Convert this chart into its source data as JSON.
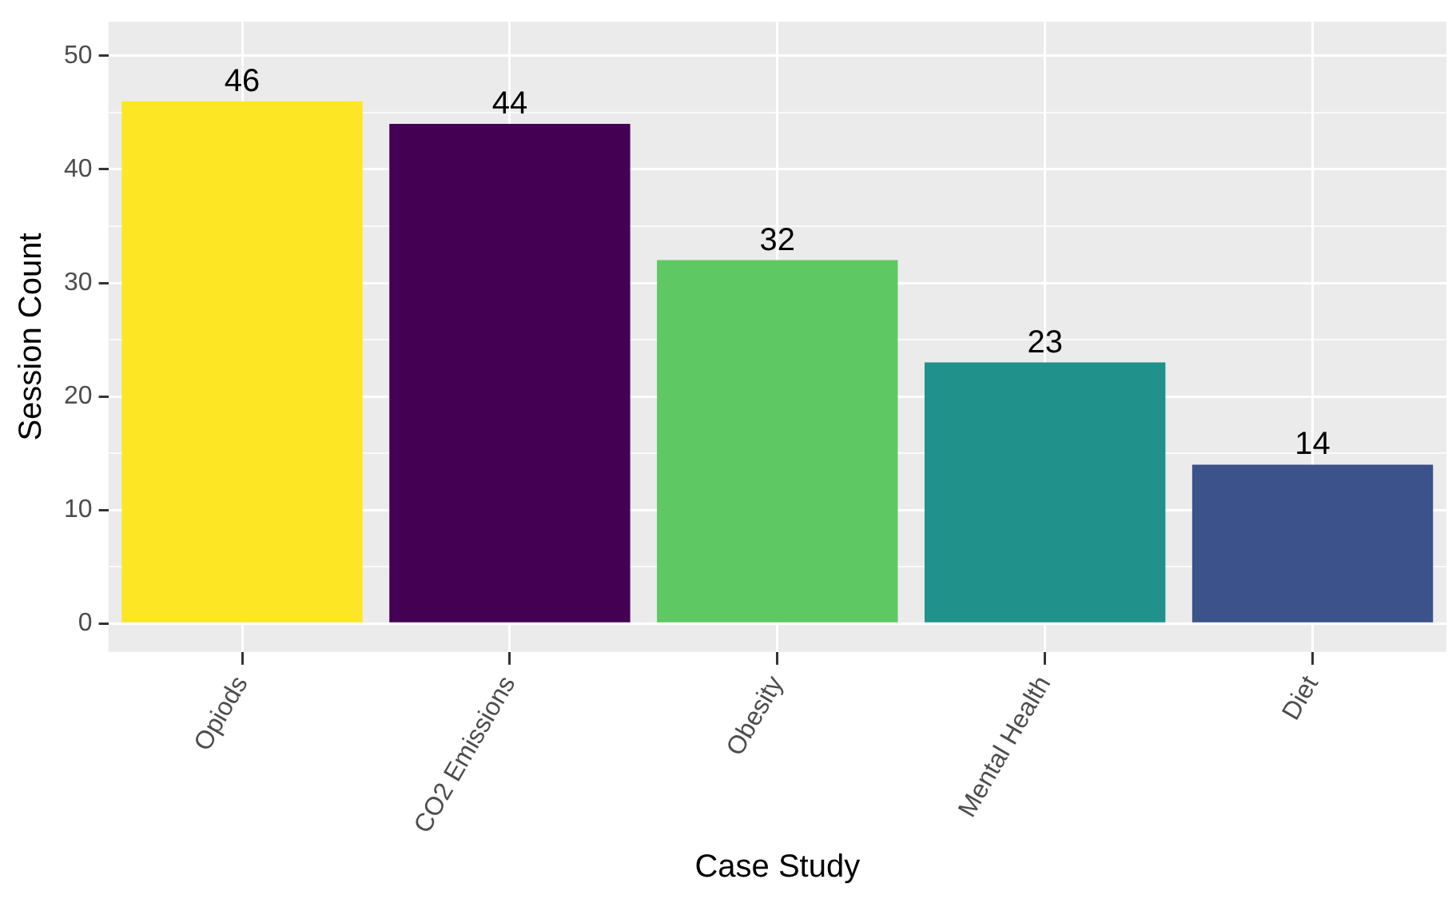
{
  "chart_data": {
    "type": "bar",
    "xlabel": "Case Study",
    "ylabel": "Session Count",
    "categories": [
      "Opiods",
      "CO2 Emissions",
      "Obesity",
      "Mental Health",
      "Diet"
    ],
    "values": [
      46,
      44,
      32,
      23,
      14
    ],
    "colors": [
      "#fde725",
      "#440154",
      "#5ec962",
      "#21918c",
      "#3b528b"
    ],
    "ylim": [
      -2.5,
      53
    ],
    "yticks": [
      0,
      {
        "value": 5,
        "label": null
      },
      10,
      {
        "value": 15,
        "label": null
      },
      20,
      {
        "value": 25,
        "label": null
      },
      30,
      {
        "value": 35,
        "label": null
      },
      40,
      {
        "value": 45,
        "label": null
      },
      50
    ],
    "grid": true,
    "data_labels": true,
    "legend": false
  }
}
